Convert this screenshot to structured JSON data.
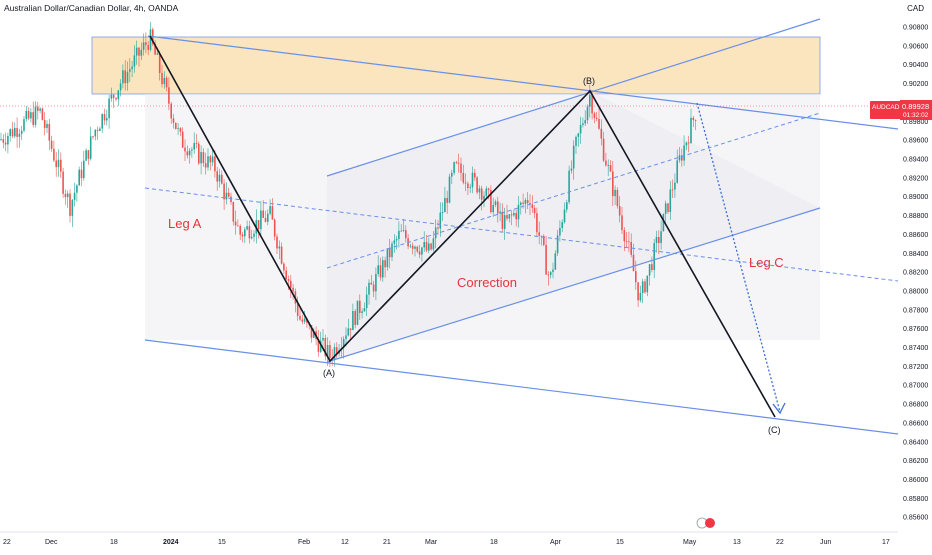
{
  "header": {
    "symbol_title": "Australian Dollar/Canadian Dollar, 4h, OANDA",
    "currency": "CAD"
  },
  "price_tag": {
    "ticker": "AUDCAD",
    "price": "0.89928",
    "countdown": "01:32:02",
    "color": "#f23645"
  },
  "colors": {
    "up_candle": "#26a69a",
    "down_candle": "#ef5350",
    "trendline": "#6a8fe8",
    "wave_line": "#131722",
    "supply_zone": "#f7c878",
    "label_red": "#e5343c"
  },
  "annotations": {
    "leg_a": "Leg A",
    "correction": "Correction",
    "leg_c": "Leg C",
    "point_a": "(A)",
    "point_b": "(B)",
    "point_c": "(C)"
  },
  "chart_data": {
    "type": "candlestick",
    "title": "Australian Dollar/Canadian Dollar, 4h, OANDA",
    "y_axis": {
      "range": [
        0.855,
        0.9105
      ],
      "tick_labels": [
        "0.90800",
        "0.90600",
        "0.90400",
        "0.90200",
        "0.90000",
        "0.89800",
        "0.89600",
        "0.89400",
        "0.89200",
        "0.89000",
        "0.88800",
        "0.88600",
        "0.88400",
        "0.88200",
        "0.88000",
        "0.87800",
        "0.87600",
        "0.87400",
        "0.87200",
        "0.87000",
        "0.86800",
        "0.86600",
        "0.86400",
        "0.86200",
        "0.86000",
        "0.85800",
        "0.85600"
      ]
    },
    "x_axis": {
      "tick_labels": [
        "22",
        "Dec",
        "18",
        "2024",
        "15",
        "Feb",
        "12",
        "21",
        "Mar",
        "18",
        "Apr",
        "15",
        "May",
        "13",
        "22",
        "Jun",
        "17"
      ]
    },
    "last_price": 0.89928,
    "waves": [
      {
        "label": "start",
        "price": 0.9068
      },
      {
        "label": "(A)",
        "price": 0.873
      },
      {
        "label": "(B)",
        "price": 0.9008
      },
      {
        "label": "(C)",
        "price": 0.867
      }
    ],
    "supply_zone": [
      0.9005,
      0.9066
    ],
    "grid": false
  }
}
